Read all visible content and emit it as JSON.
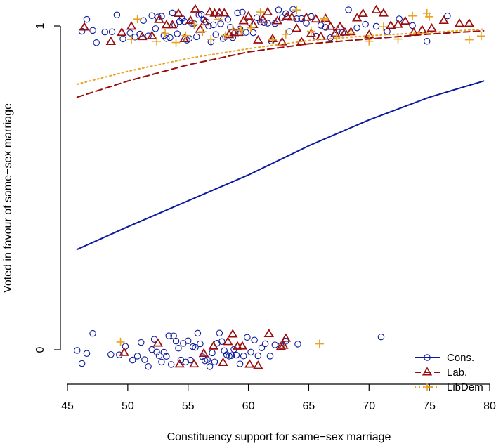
{
  "chart_data": {
    "type": "scatter",
    "title": "",
    "xlabel": "Constituency support for same−sex marriage",
    "ylabel": "Voted in favour of same−sex marriage",
    "xlim": [
      45,
      80
    ],
    "ylim": [
      0,
      1
    ],
    "x_ticks": [
      "45",
      "50",
      "55",
      "60",
      "65",
      "70",
      "75",
      "80"
    ],
    "y_ticks": [
      "0",
      "1"
    ],
    "grid": false,
    "legend_position": "bottom-right",
    "colors": {
      "Cons.": "#0c1a9e",
      "Lab.": "#9b0c0c",
      "LibDem": "#e9a21f"
    },
    "series": [
      {
        "name": "Cons.",
        "marker": "circle",
        "line_style": "solid",
        "fitted_curve": {
          "x": [
            45.8,
            50,
            55,
            60,
            65,
            70,
            75,
            79.5
          ],
          "y": [
            0.31,
            0.38,
            0.46,
            0.54,
            0.63,
            0.71,
            0.78,
            0.83
          ]
        },
        "points": {
          "yes_x": [
            46.2,
            46.6,
            47.1,
            47.4,
            48.1,
            48.7,
            49.1,
            49.6,
            50.2,
            50.6,
            51.0,
            51.3,
            51.7,
            52.0,
            52.3,
            52.5,
            52.8,
            53.0,
            53.2,
            53.5,
            53.7,
            53.9,
            54.1,
            54.3,
            54.5,
            54.7,
            54.9,
            55.1,
            55.3,
            55.5,
            55.7,
            55.9,
            56.1,
            56.3,
            56.5,
            56.7,
            56.9,
            57.1,
            57.3,
            57.5,
            57.7,
            57.9,
            58.1,
            58.3,
            58.5,
            58.7,
            58.9,
            59.1,
            59.3,
            59.5,
            59.8,
            60.1,
            60.4,
            60.7,
            61.0,
            61.3,
            61.6,
            61.9,
            62.2,
            62.5,
            62.8,
            63.1,
            63.4,
            63.7,
            64.0,
            64.4,
            64.8,
            65.2,
            65.6,
            66.0,
            66.4,
            66.8,
            67.3,
            67.8,
            68.3,
            69.0,
            69.7,
            70.6,
            71.5,
            72.5,
            73.6,
            74.8,
            76.5
          ],
          "no_x": [
            45.8,
            46.2,
            46.6,
            47.1,
            48.6,
            49.3,
            49.8,
            50.4,
            50.8,
            51.1,
            51.4,
            51.7,
            52.0,
            52.2,
            52.4,
            52.6,
            52.8,
            53.0,
            53.2,
            53.4,
            53.6,
            53.8,
            54.0,
            54.2,
            54.4,
            54.6,
            54.8,
            55.0,
            55.2,
            55.4,
            55.6,
            55.8,
            56.0,
            56.2,
            56.4,
            56.6,
            56.8,
            57.0,
            57.2,
            57.4,
            57.6,
            57.8,
            58.0,
            58.2,
            58.4,
            58.6,
            58.8,
            59.0,
            59.3,
            59.6,
            59.9,
            60.2,
            60.5,
            60.8,
            61.1,
            61.4,
            61.8,
            62.2,
            62.7,
            63.1,
            64.1,
            71.0
          ]
        }
      },
      {
        "name": "Lab.",
        "marker": "triangle",
        "line_style": "dashed",
        "fitted_curve": {
          "x": [
            45.8,
            50,
            55,
            60,
            65,
            70,
            75,
            79.5
          ],
          "y": [
            0.78,
            0.83,
            0.88,
            0.92,
            0.945,
            0.96,
            0.975,
            0.985
          ]
        },
        "points": {
          "yes_x": [
            46.4,
            48.6,
            49.5,
            50.3,
            51.2,
            52.0,
            52.6,
            53.2,
            53.7,
            54.2,
            54.7,
            55.2,
            55.6,
            56.0,
            56.4,
            56.8,
            57.2,
            57.6,
            58.0,
            58.4,
            58.8,
            59.2,
            59.6,
            60.0,
            60.4,
            60.8,
            61.2,
            61.6,
            62.0,
            62.4,
            62.8,
            63.2,
            63.6,
            64.0,
            64.4,
            64.8,
            65.2,
            65.6,
            66.0,
            66.4,
            66.8,
            67.2,
            67.6,
            68.0,
            68.5,
            69.0,
            69.5,
            70.0,
            70.6,
            71.2,
            71.8,
            72.4,
            73.0,
            73.7,
            74.4,
            75.2,
            76.2,
            77.5,
            78.3
          ],
          "no_x": [
            49.7,
            52.5,
            54.3,
            55.5,
            56.3,
            57.1,
            57.9,
            58.3,
            58.7,
            59.1,
            59.5,
            60.1,
            60.8,
            61.7,
            62.7,
            62.9,
            63.1
          ]
        }
      },
      {
        "name": "LibDem",
        "marker": "plus",
        "line_style": "dotted",
        "fitted_curve": {
          "x": [
            45.8,
            50,
            55,
            60,
            65,
            70,
            75,
            79.5
          ],
          "y": [
            0.82,
            0.86,
            0.9,
            0.93,
            0.955,
            0.97,
            0.98,
            0.99
          ]
        },
        "points": {
          "yes_x": [
            50.3,
            50.8,
            52.4,
            53.1,
            54.0,
            54.8,
            55.5,
            56.2,
            56.9,
            57.5,
            58.1,
            58.7,
            59.4,
            60.2,
            61.0,
            62.0,
            63.1,
            64.0,
            65.2,
            66.3,
            67.3,
            68.5,
            70.0,
            71.2,
            72.4,
            73.6,
            74.8,
            75.0,
            78.3,
            79.3
          ],
          "no_x": [
            49.4,
            65.9
          ]
        }
      }
    ]
  }
}
